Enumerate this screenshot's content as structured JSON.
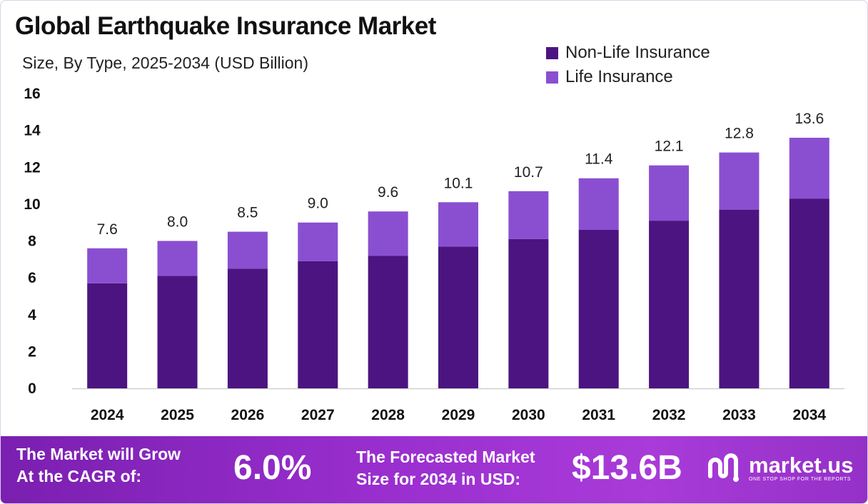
{
  "title": "Global Earthquake Insurance Market",
  "subtitle": "Size, By Type, 2025-2034 (USD Billion)",
  "colors": {
    "non_life": "#4c1480",
    "life": "#8a4fd1",
    "banner": "#9a2fcf"
  },
  "chart_data": {
    "type": "bar",
    "stacked": true,
    "title": "Global Earthquake Insurance Market",
    "subtitle": "Size, By Type, 2025-2034 (USD Billion)",
    "categories": [
      "2024",
      "2025",
      "2026",
      "2027",
      "2028",
      "2029",
      "2030",
      "2031",
      "2032",
      "2033",
      "2034"
    ],
    "series": [
      {
        "name": "Non-Life Insurance",
        "color": "#4c1480",
        "values": [
          5.7,
          6.1,
          6.5,
          6.9,
          7.2,
          7.7,
          8.1,
          8.6,
          9.1,
          9.7,
          10.3
        ]
      },
      {
        "name": "Life Insurance",
        "color": "#8a4fd1",
        "values": [
          1.9,
          1.9,
          2.0,
          2.1,
          2.4,
          2.4,
          2.6,
          2.8,
          3.0,
          3.1,
          3.3
        ]
      }
    ],
    "totals": [
      "7.6",
      "8.0",
      "8.5",
      "9.0",
      "9.6",
      "10.1",
      "10.7",
      "11.4",
      "12.1",
      "12.8",
      "13.6"
    ],
    "yticks": [
      "0",
      "2",
      "4",
      "6",
      "8",
      "10",
      "12",
      "14",
      "16"
    ],
    "ylim": [
      0,
      16
    ],
    "xlabel": "",
    "ylabel": "",
    "legend_position": "top-right"
  },
  "footer": {
    "cagr_line1": "The Market will Grow",
    "cagr_line2": "At the CAGR of:",
    "cagr_value": "6.0%",
    "forecast_line1": "The Forecasted Market",
    "forecast_line2": "Size for 2034 in USD:",
    "forecast_value": "$13.6B",
    "brand_name": "market.us",
    "brand_tagline": "ONE STOP SHOP FOR THE REPORTS"
  }
}
